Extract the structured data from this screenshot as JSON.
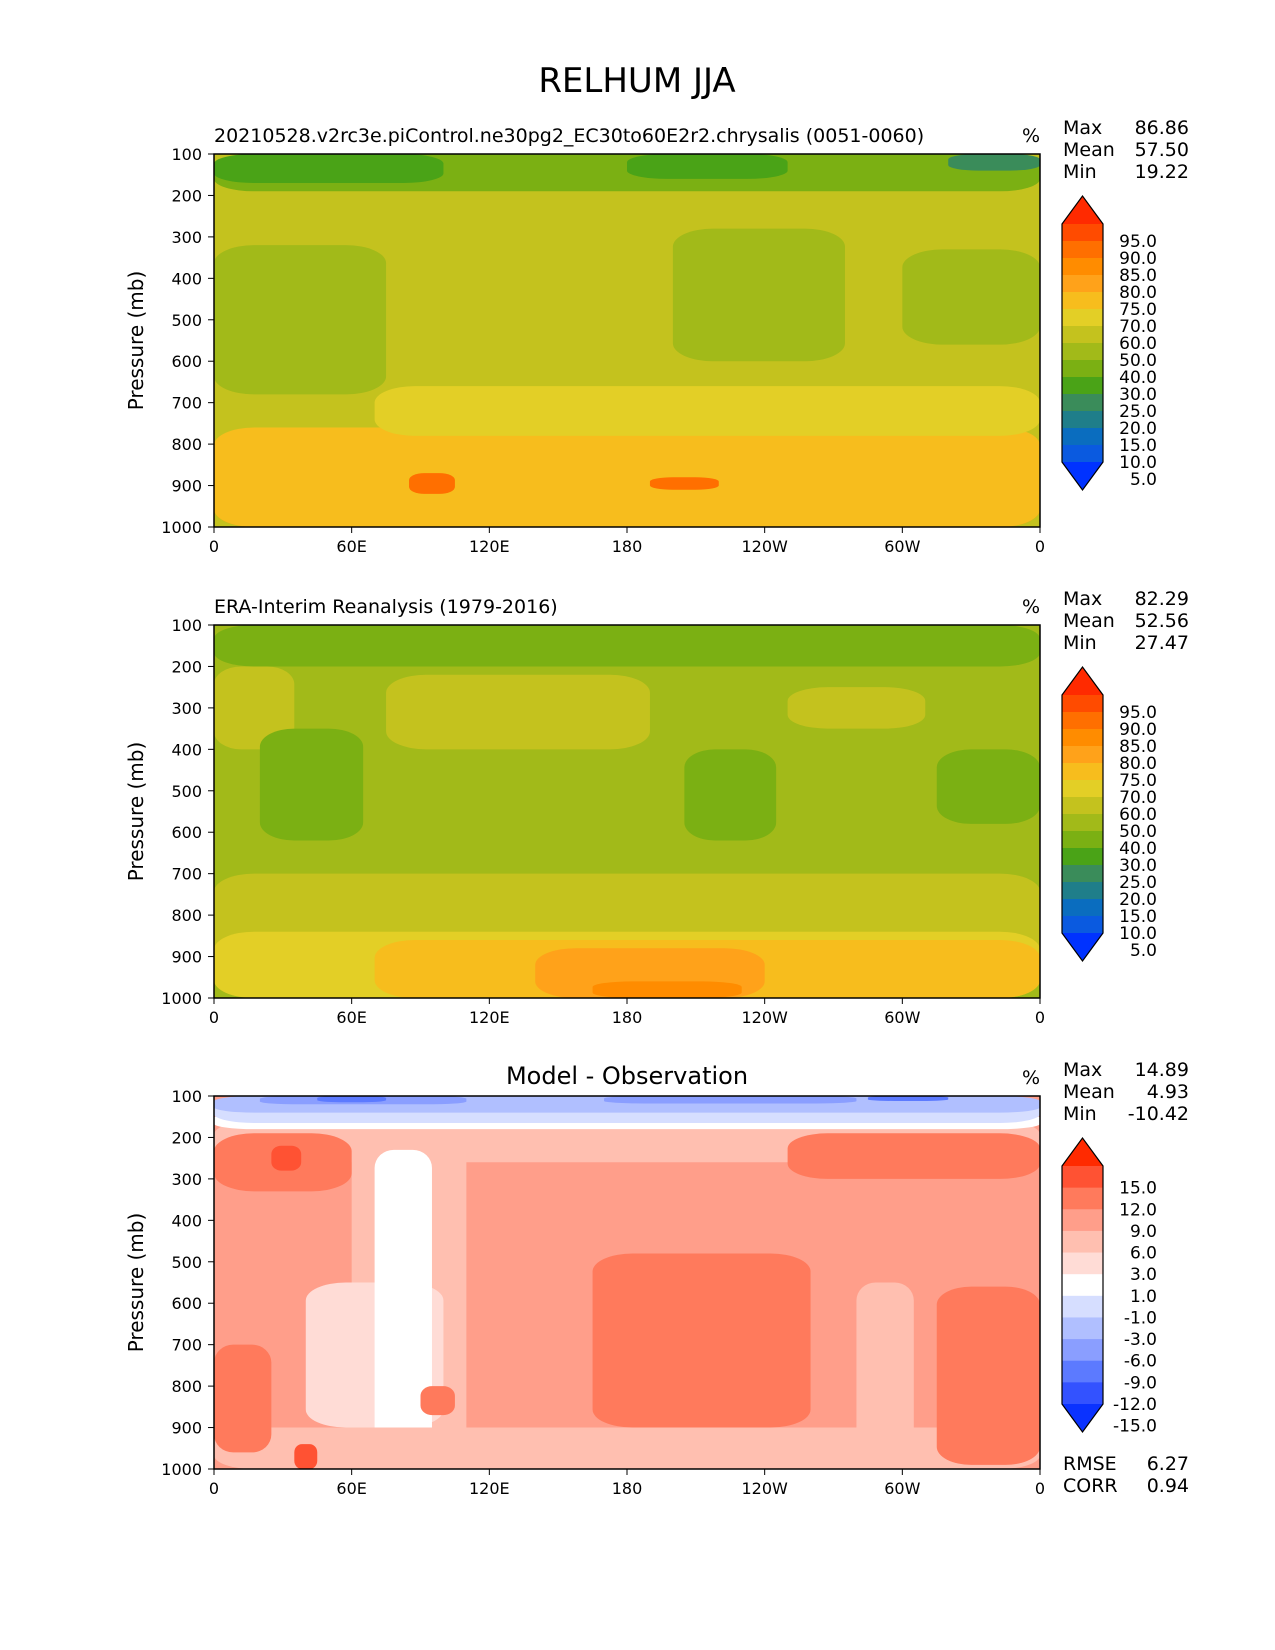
{
  "figure_title": "RELHUM JJA",
  "chart_data": [
    {
      "type": "contour",
      "title": "20210528.v2rc3e.piControl.ne30pg2_EC30to60E2r2.chrysalis (0051-0060)",
      "title_align": "left",
      "units": "%",
      "ylabel": "Pressure (mb)",
      "xticks": [
        "0",
        "60E",
        "120E",
        "180",
        "120W",
        "60W",
        "0"
      ],
      "yticks": [
        "100",
        "200",
        "300",
        "400",
        "500",
        "600",
        "700",
        "800",
        "900",
        "1000"
      ],
      "xlim": [
        0,
        360
      ],
      "ylim": [
        1000,
        100
      ],
      "stats": [
        {
          "label": "Max",
          "value": "86.86"
        },
        {
          "label": "Mean",
          "value": "57.50"
        },
        {
          "label": "Min",
          "value": "19.22"
        }
      ],
      "colorbar": {
        "labels": [
          "95.0",
          "90.0",
          "85.0",
          "80.0",
          "75.0",
          "70.0",
          "60.0",
          "50.0",
          "40.0",
          "30.0",
          "25.0",
          "20.0",
          "15.0",
          "10.0",
          "5.0"
        ],
        "colors": [
          "#ff2a00",
          "#ff4b00",
          "#ff6f00",
          "#ff8c00",
          "#ffa21a",
          "#f7bd1d",
          "#e3cf26",
          "#c4c21e",
          "#a2ba19",
          "#7bb013",
          "#4aa317",
          "#3a8c5a",
          "#1f7e8a",
          "#0a6dbf",
          "#0a5ae0",
          "#0032ff"
        ]
      },
      "background": "#c4c21e",
      "regions": [
        {
          "level": "#ff8c00",
          "x": [
            0,
            360
          ],
          "p": [
            860,
            1000
          ]
        },
        {
          "level": "#ffa21a",
          "x": [
            60,
            360
          ],
          "p": [
            800,
            1000
          ]
        },
        {
          "level": "#f7bd1d",
          "x": [
            0,
            360
          ],
          "p": [
            760,
            1000
          ]
        },
        {
          "level": "#e3cf26",
          "x": [
            70,
            360
          ],
          "p": [
            660,
            780
          ]
        },
        {
          "level": "#a2ba19",
          "x": [
            0,
            75
          ],
          "p": [
            320,
            680
          ]
        },
        {
          "level": "#a2ba19",
          "x": [
            200,
            275
          ],
          "p": [
            280,
            600
          ]
        },
        {
          "level": "#a2ba19",
          "x": [
            300,
            360
          ],
          "p": [
            330,
            560
          ]
        },
        {
          "level": "#7bb013",
          "x": [
            0,
            360
          ],
          "p": [
            100,
            190
          ]
        },
        {
          "level": "#4aa317",
          "x": [
            0,
            100
          ],
          "p": [
            100,
            170
          ]
        },
        {
          "level": "#4aa317",
          "x": [
            180,
            250
          ],
          "p": [
            100,
            160
          ]
        },
        {
          "level": "#3a8c5a",
          "x": [
            320,
            360
          ],
          "p": [
            100,
            140
          ]
        },
        {
          "level": "#ff6f00",
          "x": [
            85,
            105
          ],
          "p": [
            870,
            920
          ]
        },
        {
          "level": "#ff6f00",
          "x": [
            190,
            220
          ],
          "p": [
            880,
            910
          ]
        }
      ]
    },
    {
      "type": "contour",
      "title": "ERA-Interim Reanalysis (1979-2016)",
      "title_align": "left",
      "units": "%",
      "ylabel": "Pressure (mb)",
      "xticks": [
        "0",
        "60E",
        "120E",
        "180",
        "120W",
        "60W",
        "0"
      ],
      "yticks": [
        "100",
        "200",
        "300",
        "400",
        "500",
        "600",
        "700",
        "800",
        "900",
        "1000"
      ],
      "xlim": [
        0,
        360
      ],
      "ylim": [
        1000,
        100
      ],
      "stats": [
        {
          "label": "Max",
          "value": "82.29"
        },
        {
          "label": "Mean",
          "value": "52.56"
        },
        {
          "label": "Min",
          "value": "27.47"
        }
      ],
      "colorbar": {
        "labels": [
          "95.0",
          "90.0",
          "85.0",
          "80.0",
          "75.0",
          "70.0",
          "60.0",
          "50.0",
          "40.0",
          "30.0",
          "25.0",
          "20.0",
          "15.0",
          "10.0",
          "5.0"
        ],
        "colors": [
          "#ff2a00",
          "#ff4b00",
          "#ff6f00",
          "#ff8c00",
          "#ffa21a",
          "#f7bd1d",
          "#e3cf26",
          "#c4c21e",
          "#a2ba19",
          "#7bb013",
          "#4aa317",
          "#3a8c5a",
          "#1f7e8a",
          "#0a6dbf",
          "#0a5ae0",
          "#0032ff"
        ]
      },
      "background": "#a2ba19",
      "regions": [
        {
          "level": "#c4c21e",
          "x": [
            0,
            360
          ],
          "p": [
            700,
            1000
          ]
        },
        {
          "level": "#e3cf26",
          "x": [
            0,
            360
          ],
          "p": [
            840,
            1000
          ]
        },
        {
          "level": "#f7bd1d",
          "x": [
            70,
            360
          ],
          "p": [
            860,
            1000
          ]
        },
        {
          "level": "#ffa21a",
          "x": [
            140,
            240
          ],
          "p": [
            880,
            1000
          ]
        },
        {
          "level": "#c4c21e",
          "x": [
            0,
            35
          ],
          "p": [
            200,
            400
          ]
        },
        {
          "level": "#c4c21e",
          "x": [
            75,
            190
          ],
          "p": [
            220,
            400
          ]
        },
        {
          "level": "#c4c21e",
          "x": [
            250,
            310
          ],
          "p": [
            250,
            350
          ]
        },
        {
          "level": "#7bb013",
          "x": [
            20,
            65
          ],
          "p": [
            350,
            620
          ]
        },
        {
          "level": "#7bb013",
          "x": [
            205,
            245
          ],
          "p": [
            400,
            620
          ]
        },
        {
          "level": "#7bb013",
          "x": [
            315,
            360
          ],
          "p": [
            400,
            580
          ]
        },
        {
          "level": "#7bb013",
          "x": [
            0,
            360
          ],
          "p": [
            100,
            200
          ]
        },
        {
          "level": "#ff8c00",
          "x": [
            165,
            230
          ],
          "p": [
            960,
            1000
          ]
        }
      ]
    },
    {
      "type": "contour",
      "title": "Model - Observation",
      "title_align": "center",
      "units": "%",
      "ylabel": "Pressure (mb)",
      "xticks": [
        "0",
        "60E",
        "120E",
        "180",
        "120W",
        "60W",
        "0"
      ],
      "yticks": [
        "100",
        "200",
        "300",
        "400",
        "500",
        "600",
        "700",
        "800",
        "900",
        "1000"
      ],
      "xlim": [
        0,
        360
      ],
      "ylim": [
        1000,
        100
      ],
      "stats": [
        {
          "label": "Max",
          "value": "14.89"
        },
        {
          "label": "Mean",
          "value": "4.93"
        },
        {
          "label": "Min",
          "value": "-10.42"
        }
      ],
      "colorbar": {
        "labels": [
          "15.0",
          "12.0",
          "9.0",
          "6.0",
          "3.0",
          "1.0",
          "-1.0",
          "-3.0",
          "-6.0",
          "-9.0",
          "-12.0",
          "-15.0"
        ],
        "colors": [
          "#ff2a00",
          "#ff5233",
          "#ff7a5c",
          "#ff9e8a",
          "#ffbfb0",
          "#ffdcd6",
          "#ffffff",
          "#d6deff",
          "#b0bfff",
          "#8a9eff",
          "#5c7aff",
          "#3352ff",
          "#0a32ff"
        ]
      },
      "background": "#ff9e8a",
      "regions": [
        {
          "level": "#ffbfb0",
          "x": [
            0,
            360
          ],
          "p": [
            160,
            260
          ]
        },
        {
          "level": "#ffbfb0",
          "x": [
            60,
            110
          ],
          "p": [
            200,
            1000
          ]
        },
        {
          "level": "#ffdcd6",
          "x": [
            40,
            100
          ],
          "p": [
            550,
            900
          ]
        },
        {
          "level": "#ffffff",
          "x": [
            70,
            95
          ],
          "p": [
            230,
            1000
          ]
        },
        {
          "level": "#ffbfb0",
          "x": [
            280,
            305
          ],
          "p": [
            550,
            1000
          ]
        },
        {
          "level": "#ffbfb0",
          "x": [
            0,
            360
          ],
          "p": [
            900,
            1000
          ]
        },
        {
          "level": "#ff7a5c",
          "x": [
            165,
            260
          ],
          "p": [
            480,
            900
          ]
        },
        {
          "level": "#ff7a5c",
          "x": [
            315,
            360
          ],
          "p": [
            560,
            990
          ]
        },
        {
          "level": "#ff7a5c",
          "x": [
            250,
            360
          ],
          "p": [
            190,
            300
          ]
        },
        {
          "level": "#ff7a5c",
          "x": [
            0,
            60
          ],
          "p": [
            190,
            330
          ]
        },
        {
          "level": "#ff7a5c",
          "x": [
            0,
            25
          ],
          "p": [
            700,
            960
          ]
        },
        {
          "level": "#ff7a5c",
          "x": [
            90,
            105
          ],
          "p": [
            800,
            870
          ]
        },
        {
          "level": "#ff5233",
          "x": [
            35,
            45
          ],
          "p": [
            940,
            1000
          ]
        },
        {
          "level": "#ff5233",
          "x": [
            25,
            38
          ],
          "p": [
            220,
            280
          ]
        },
        {
          "level": "#ffffff",
          "x": [
            0,
            360
          ],
          "p": [
            140,
            180
          ]
        },
        {
          "level": "#d6deff",
          "x": [
            0,
            360
          ],
          "p": [
            100,
            165
          ]
        },
        {
          "level": "#b0bfff",
          "x": [
            0,
            360
          ],
          "p": [
            100,
            140
          ]
        },
        {
          "level": "#8a9eff",
          "x": [
            20,
            110
          ],
          "p": [
            100,
            120
          ]
        },
        {
          "level": "#5c7aff",
          "x": [
            45,
            75
          ],
          "p": [
            100,
            115
          ]
        },
        {
          "level": "#8a9eff",
          "x": [
            170,
            280
          ],
          "p": [
            100,
            118
          ]
        },
        {
          "level": "#5c7aff",
          "x": [
            285,
            320
          ],
          "p": [
            100,
            112
          ]
        }
      ],
      "metrics": [
        {
          "label": "RMSE",
          "value": "6.27"
        },
        {
          "label": "CORR",
          "value": "0.94"
        }
      ]
    }
  ]
}
